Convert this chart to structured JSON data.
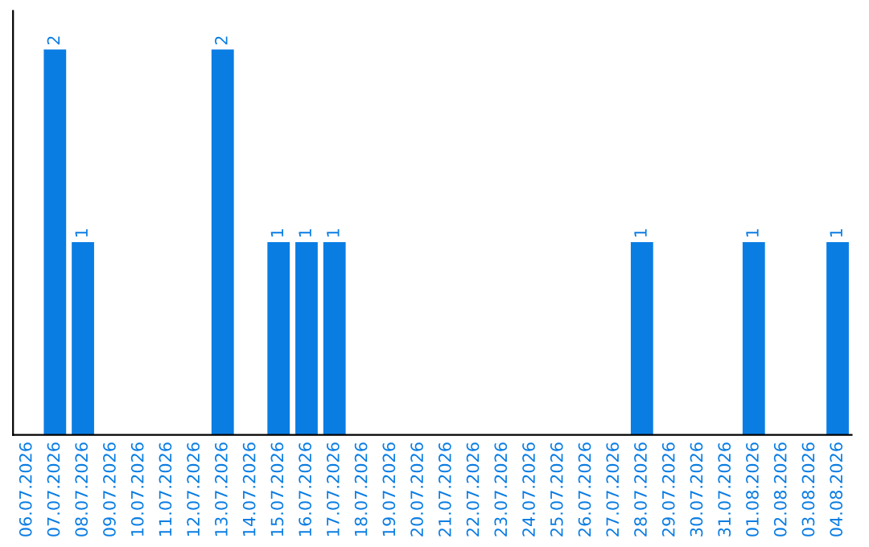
{
  "chart_data": {
    "type": "bar",
    "categories": [
      "06.07.2026",
      "07.07.2026",
      "08.07.2026",
      "09.07.2026",
      "10.07.2026",
      "11.07.2026",
      "12.07.2026",
      "13.07.2026",
      "14.07.2026",
      "15.07.2026",
      "16.07.2026",
      "17.07.2026",
      "18.07.2026",
      "19.07.2026",
      "20.07.2026",
      "21.07.2026",
      "22.07.2026",
      "23.07.2026",
      "24.07.2026",
      "25.07.2026",
      "26.07.2026",
      "27.07.2026",
      "28.07.2026",
      "29.07.2026",
      "30.07.2026",
      "31.07.2026",
      "01.08.2026",
      "02.08.2026",
      "03.08.2026",
      "04.08.2026"
    ],
    "values": [
      0,
      2,
      1,
      0,
      0,
      0,
      0,
      2,
      0,
      1,
      1,
      1,
      0,
      0,
      0,
      0,
      0,
      0,
      0,
      0,
      0,
      0,
      1,
      0,
      0,
      0,
      1,
      0,
      0,
      1
    ],
    "value_labels": [
      null,
      "2",
      "1",
      null,
      null,
      null,
      null,
      "2",
      null,
      "1",
      "1",
      "1",
      null,
      null,
      null,
      null,
      null,
      null,
      null,
      null,
      null,
      null,
      "1",
      null,
      null,
      null,
      "1",
      null,
      null,
      "1"
    ],
    "color": "#0a7de3",
    "grid": false,
    "legend": false
  }
}
